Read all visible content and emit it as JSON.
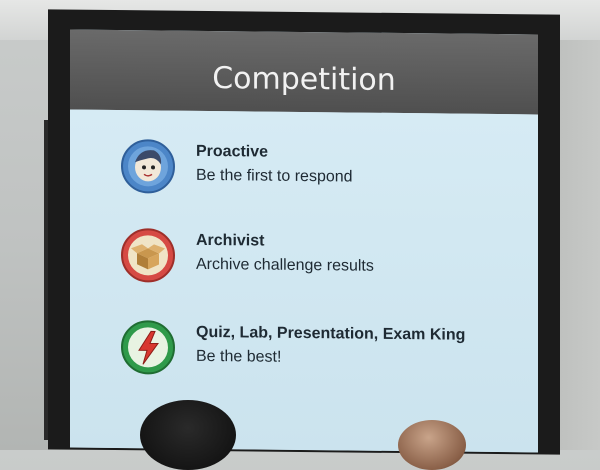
{
  "slide": {
    "title": "Competition",
    "items": [
      {
        "title": "Proactive",
        "description": "Be the first to respond",
        "icon": "proactive-badge-icon",
        "color": "#4c86c8"
      },
      {
        "title": "Archivist",
        "description": "Archive challenge results",
        "icon": "archive-box-badge-icon",
        "color": "#d64a44"
      },
      {
        "title": "Quiz, Lab, Presentation, Exam King",
        "description": "Be the best!",
        "icon": "lightning-badge-icon",
        "color": "#2f9a4a"
      }
    ]
  }
}
